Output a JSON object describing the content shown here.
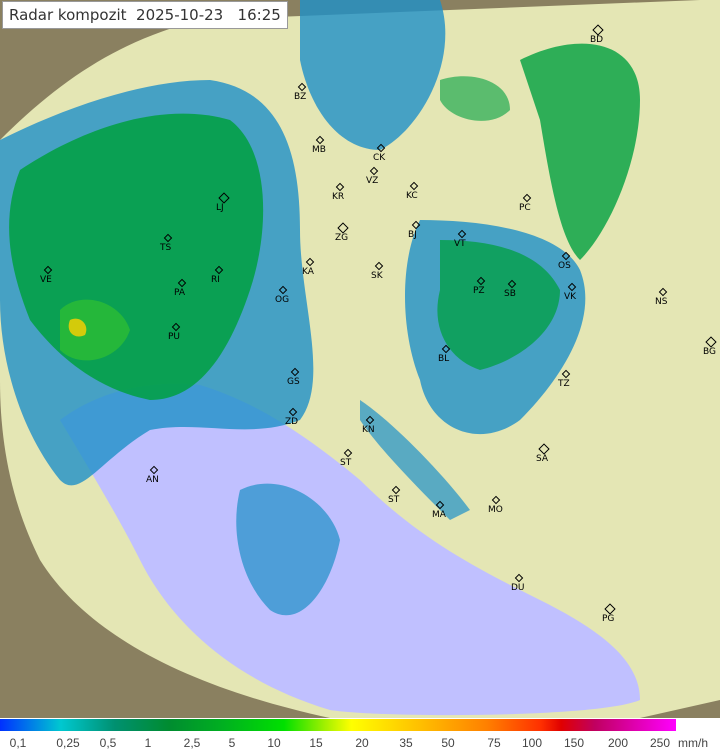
{
  "title": {
    "label": "Radar kompozit",
    "date": "2025-10-23",
    "time": "16:25"
  },
  "map": {
    "colors": {
      "sea": "#c0c0ff",
      "land": "#e6e6b4",
      "outside": "#8a8060",
      "rain_light": "#1e90c8",
      "rain_mid": "#00a040",
      "rain_heavy": "#ffd000"
    },
    "cities": [
      "BD",
      "BZ",
      "MB",
      "CK",
      "VZ",
      "KR",
      "KC",
      "PC",
      "LJ",
      "TS",
      "VE",
      "ZG",
      "BJ",
      "VT",
      "OS",
      "NS",
      "RI",
      "KA",
      "SK",
      "PA",
      "PZ",
      "SB",
      "VK",
      "PU",
      "OG",
      "BG",
      "BL",
      "TZ",
      "GS",
      "ZD",
      "KN",
      "SA",
      "AN",
      "ST",
      "ST",
      "MA",
      "MO",
      "DU",
      "PG"
    ]
  },
  "legend": {
    "ticks": [
      "0,1",
      "0,25",
      "0,5",
      "1",
      "2,5",
      "5",
      "10",
      "15",
      "20",
      "35",
      "50",
      "75",
      "100",
      "150",
      "200",
      "250"
    ],
    "unit": "mm/h"
  }
}
